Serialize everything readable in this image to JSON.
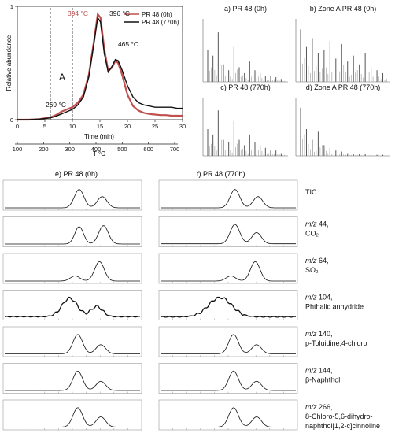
{
  "chart_data": [
    {
      "id": "main",
      "type": "line",
      "ylabel": "Relative abundance",
      "xlabel_time": "Time (min)",
      "xlabel_temp": "T °C",
      "time_ticks": [
        0,
        5,
        10,
        15,
        20,
        25,
        30
      ],
      "temp_ticks": [
        100,
        200,
        300,
        400,
        500,
        600,
        700
      ],
      "y_ticks": [
        0,
        1
      ],
      "xlim": [
        0,
        30
      ],
      "ylim": [
        0,
        1
      ],
      "zone_label": "A",
      "zone_range_min": [
        6,
        10
      ],
      "annotations": [
        {
          "text": "394 °C",
          "color": "#c0504d"
        },
        {
          "text": "396 °C",
          "color": "#111111"
        },
        {
          "text": "465 °C",
          "color": "#111111"
        },
        {
          "text": "269 °C",
          "color": "#111111"
        }
      ],
      "series": [
        {
          "name": "PR 48 (0h)",
          "color": "#c0504d",
          "x": [
            0,
            2,
            4,
            6,
            7,
            8,
            9,
            10,
            11,
            12,
            13,
            14,
            14.6,
            15.1,
            15.8,
            16.5,
            17.2,
            17.8,
            18.3,
            19,
            20,
            21,
            22,
            23,
            24,
            25,
            26,
            27,
            28,
            29,
            30
          ],
          "y": [
            0,
            0,
            0.005,
            0.02,
            0.04,
            0.07,
            0.09,
            0.11,
            0.15,
            0.22,
            0.4,
            0.72,
            0.93,
            0.9,
            0.62,
            0.43,
            0.46,
            0.52,
            0.5,
            0.4,
            0.22,
            0.12,
            0.08,
            0.06,
            0.05,
            0.045,
            0.04,
            0.04,
            0.035,
            0.035,
            0.035
          ]
        },
        {
          "name": "PR 48 (770h)",
          "color": "#111111",
          "x": [
            0,
            2,
            4,
            6,
            7,
            8,
            9,
            10,
            11,
            12,
            13,
            14,
            14.6,
            15.1,
            15.8,
            16.5,
            17.2,
            17.8,
            18.3,
            19,
            20,
            21,
            22,
            23,
            24,
            25,
            26,
            27,
            28,
            29,
            30
          ],
          "y": [
            0,
            0,
            0.005,
            0.015,
            0.03,
            0.05,
            0.07,
            0.09,
            0.13,
            0.2,
            0.38,
            0.7,
            0.9,
            0.86,
            0.58,
            0.42,
            0.47,
            0.53,
            0.52,
            0.44,
            0.3,
            0.2,
            0.15,
            0.13,
            0.12,
            0.11,
            0.11,
            0.11,
            0.11,
            0.1,
            0.1
          ]
        }
      ]
    },
    {
      "id": "ms_a",
      "type": "bar",
      "label": "a)  PR 48 (0h)",
      "peaks": [
        0.55,
        0.45,
        0.85,
        0.3,
        0.2,
        0.6,
        0.25,
        0.15,
        0.35,
        0.2,
        0.15,
        0.1,
        0.1,
        0.08,
        0.05
      ]
    },
    {
      "id": "ms_b",
      "type": "bar",
      "label": "b) Zone A PR 48 (0h)",
      "peaks": [
        0.9,
        0.6,
        0.75,
        0.5,
        0.55,
        0.7,
        0.4,
        0.65,
        0.35,
        0.45,
        0.3,
        0.5,
        0.25,
        0.2,
        0.15
      ]
    },
    {
      "id": "ms_c",
      "type": "bar",
      "label": "c)  PR 48 (770h)",
      "peaks": [
        0.5,
        0.4,
        0.85,
        0.3,
        0.25,
        0.65,
        0.3,
        0.2,
        0.4,
        0.25,
        0.2,
        0.15,
        0.1,
        0.1,
        0.05
      ]
    },
    {
      "id": "ms_d",
      "type": "bar",
      "label": "d)  Zone A PR 48 (770h)",
      "peaks": [
        0.9,
        0.5,
        0.3,
        0.45,
        0.2,
        0.15,
        0.1,
        0.08,
        0.05,
        0.04,
        0.03,
        0.03,
        0.02,
        0.02,
        0.02
      ]
    }
  ],
  "ion_panels": {
    "left_title": "e) PR 48 (0h)",
    "right_title": "f) PR 48 (770h)",
    "rows": [
      {
        "label_1": "TIC",
        "label_2": "",
        "is_tic": true
      },
      {
        "label_1": "m/z 44,",
        "label_2": "CO₂"
      },
      {
        "label_1": "m/z 64,",
        "label_2": "SO₂"
      },
      {
        "label_1": "m/z 104,",
        "label_2": "Phthalic anhydride"
      },
      {
        "label_1": "m/z 140,",
        "label_2": "p-Toluidine,4-chloro"
      },
      {
        "label_1": "m/z 144,",
        "label_2": "β-Naphthol"
      },
      {
        "label_1": "m/z 266,",
        "label_2": "8-Chloro-5,6-dihydro-",
        "label_3": "naphthol[1,2-c]cinnoline"
      }
    ]
  }
}
